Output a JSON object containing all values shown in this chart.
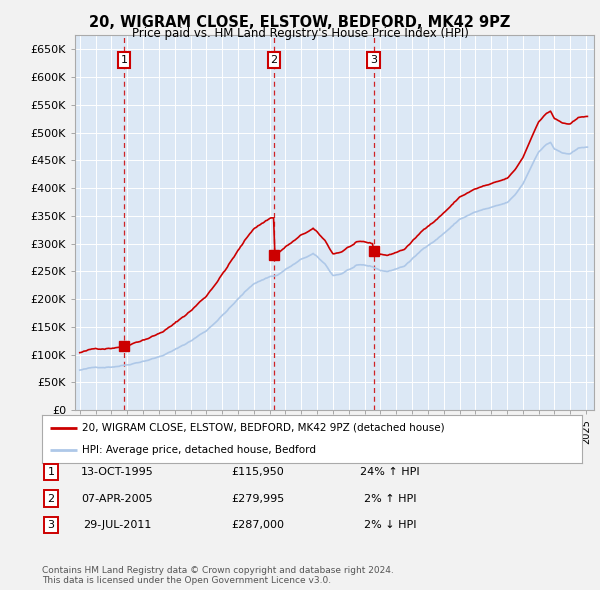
{
  "title": "20, WIGRAM CLOSE, ELSTOW, BEDFORD, MK42 9PZ",
  "subtitle": "Price paid vs. HM Land Registry's House Price Index (HPI)",
  "ylim": [
    0,
    675000
  ],
  "yticks": [
    0,
    50000,
    100000,
    150000,
    200000,
    250000,
    300000,
    350000,
    400000,
    450000,
    500000,
    550000,
    600000,
    650000
  ],
  "ytick_labels": [
    "£0",
    "£50K",
    "£100K",
    "£150K",
    "£200K",
    "£250K",
    "£300K",
    "£350K",
    "£400K",
    "£450K",
    "£500K",
    "£550K",
    "£600K",
    "£650K"
  ],
  "xlim_start": 1992.7,
  "xlim_end": 2025.5,
  "hpi_color": "#aec8e8",
  "price_color": "#cc0000",
  "vline_color": "#cc0000",
  "background_color": "#f2f2f2",
  "plot_bg_color": "#dce8f5",
  "transactions": [
    {
      "label": "1",
      "year": 1995.79,
      "price": 115950
    },
    {
      "label": "2",
      "year": 2005.27,
      "price": 279995
    },
    {
      "label": "3",
      "year": 2011.57,
      "price": 287000
    }
  ],
  "legend_line1": "20, WIGRAM CLOSE, ELSTOW, BEDFORD, MK42 9PZ (detached house)",
  "legend_line2": "HPI: Average price, detached house, Bedford",
  "table_rows": [
    {
      "num": "1",
      "date": "13-OCT-1995",
      "price": "£115,950",
      "change": "24% ↑ HPI"
    },
    {
      "num": "2",
      "date": "07-APR-2005",
      "price": "£279,995",
      "change": "2% ↑ HPI"
    },
    {
      "num": "3",
      "date": "29-JUL-2011",
      "price": "£287,000",
      "change": "2% ↓ HPI"
    }
  ],
  "footnote": "Contains HM Land Registry data © Crown copyright and database right 2024.\nThis data is licensed under the Open Government Licence v3.0."
}
